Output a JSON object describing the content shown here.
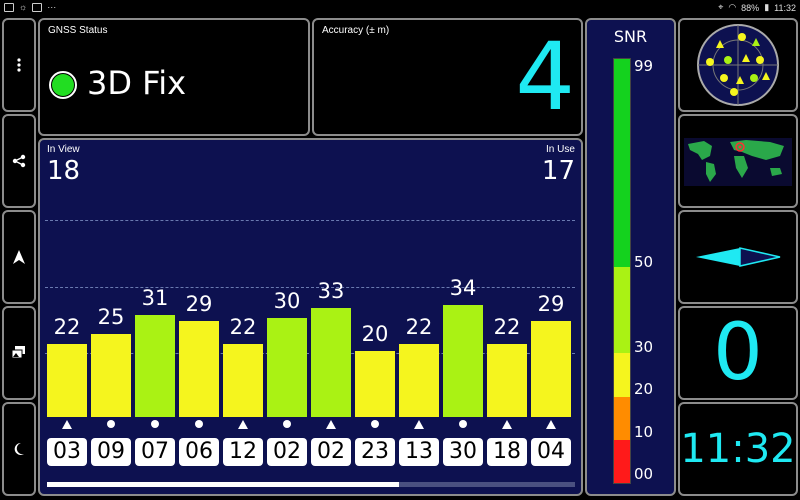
{
  "status_bar": {
    "battery": "88%",
    "time": "11:32"
  },
  "sidebar": [
    {
      "name": "menu-button",
      "icon": "more-vert-icon"
    },
    {
      "name": "share-button",
      "icon": "share-icon"
    },
    {
      "name": "navigation-button",
      "icon": "navigation-arrow-icon"
    },
    {
      "name": "gallery-button",
      "icon": "gallery-icon"
    },
    {
      "name": "night-mode-button",
      "icon": "moon-icon"
    }
  ],
  "gnss": {
    "label": "GNSS Status",
    "fix": "3D Fix",
    "fix_color": "#22dd22"
  },
  "accuracy": {
    "label": "Accuracy (± m)",
    "value": "4"
  },
  "satellites": {
    "in_view_label": "In View",
    "in_view": "18",
    "in_use_label": "In Use",
    "in_use": "17"
  },
  "chart_data": {
    "type": "bar",
    "categories": [
      "03",
      "09",
      "07",
      "06",
      "12",
      "02",
      "02",
      "23",
      "13",
      "30",
      "18",
      "04"
    ],
    "values": [
      22,
      25,
      31,
      29,
      22,
      30,
      33,
      20,
      22,
      34,
      22,
      29
    ],
    "markers": [
      "triangle",
      "dot",
      "dot",
      "dot",
      "triangle",
      "dot",
      "triangle",
      "dot",
      "triangle",
      "dot",
      "triangle",
      "triangle"
    ],
    "ylim": [
      0,
      99
    ]
  },
  "snr": {
    "title": "SNR",
    "ticks": [
      "99",
      "50",
      "30",
      "20",
      "10",
      "00"
    ],
    "colors": {
      "green": "#14d21e",
      "lime": "#aaf214",
      "yellow": "#f5f51e",
      "orange": "#ff8c00",
      "red": "#ff1a1a"
    }
  },
  "right_panel": {
    "heading": "0",
    "time": "11:32"
  },
  "colors": {
    "accent": "#1fe9f2",
    "panel_blue": "#0d1150"
  }
}
